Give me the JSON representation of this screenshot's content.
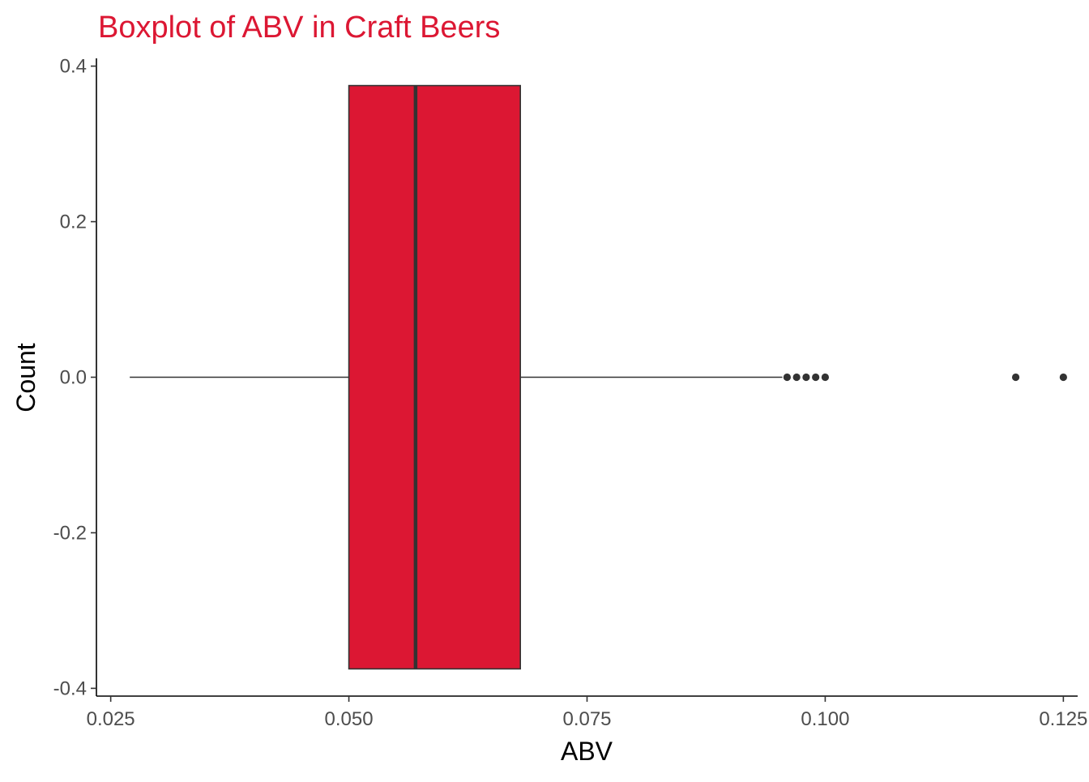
{
  "chart_data": {
    "type": "boxplot",
    "title": "Boxplot of ABV in Craft Beers",
    "xlabel": "ABV",
    "ylabel": "Count",
    "xlim": [
      0.0235,
      0.1265
    ],
    "ylim": [
      -0.41,
      0.41
    ],
    "x_ticks": [
      0.025,
      0.05,
      0.075,
      0.1,
      0.125
    ],
    "x_tick_labels": [
      "0.025",
      "0.050",
      "0.075",
      "0.100",
      "0.125"
    ],
    "y_ticks": [
      0.4,
      0.2,
      0.0,
      -0.2,
      -0.4
    ],
    "y_tick_labels": [
      "0.4",
      "0.2",
      "0.0",
      "-0.2",
      "-0.4"
    ],
    "grid": false,
    "box": {
      "whisker_low": 0.027,
      "q1": 0.05,
      "median": 0.057,
      "q3": 0.068,
      "whisker_high": 0.0955,
      "y_center": 0.0,
      "half_height": 0.375
    },
    "outliers": [
      0.096,
      0.097,
      0.098,
      0.099,
      0.1,
      0.12,
      0.125
    ],
    "colors": {
      "box_fill": "#DC1733",
      "title": "#DC1733",
      "line": "#333333",
      "axis": "#000000"
    }
  }
}
